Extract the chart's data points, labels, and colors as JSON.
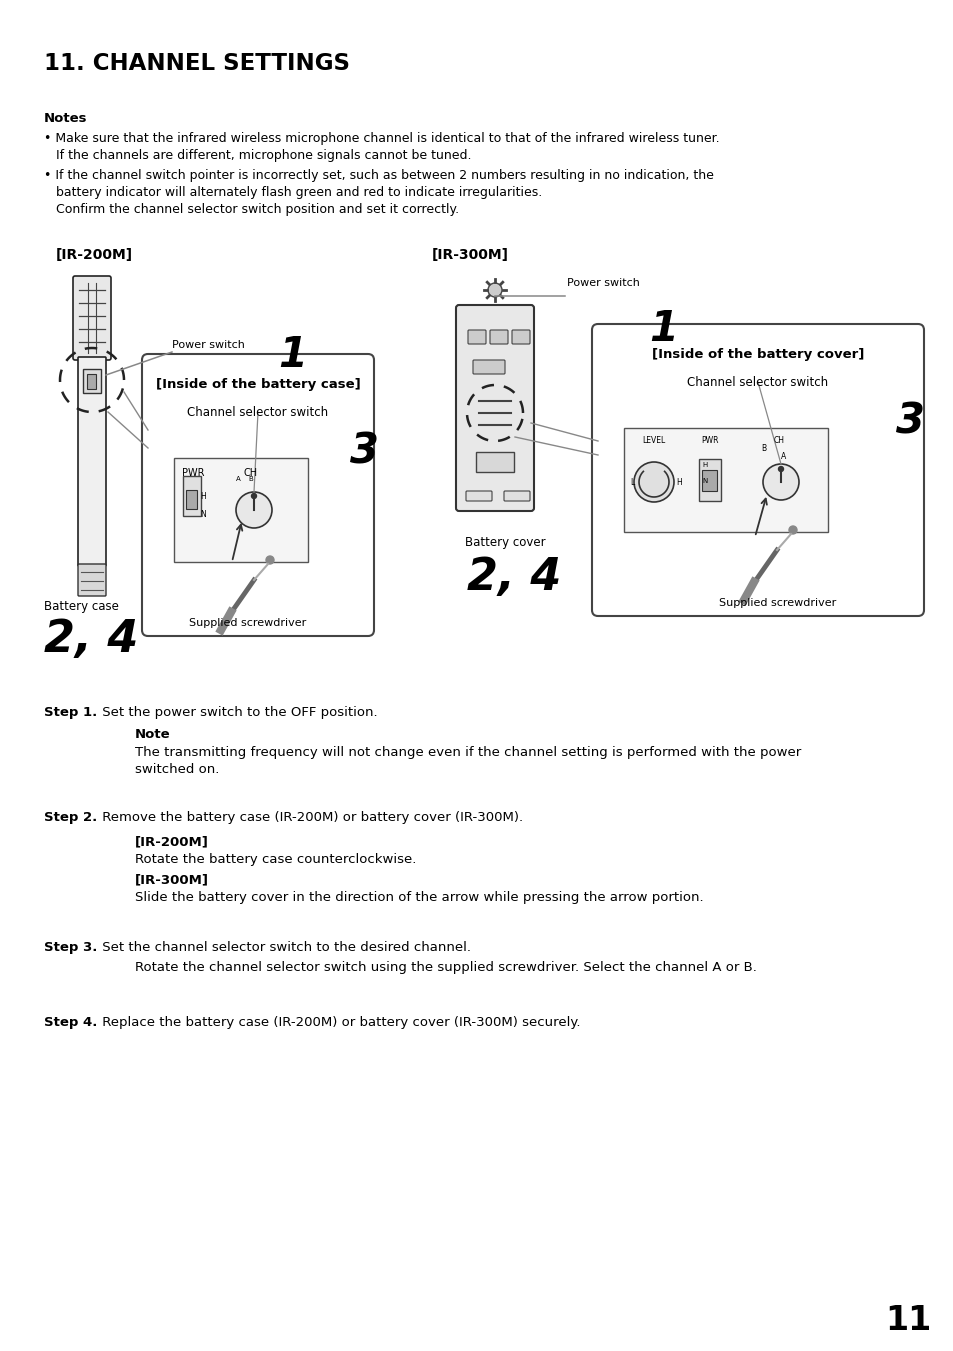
{
  "title": "11. CHANNEL SETTINGS",
  "bg_color": "#ffffff",
  "text_color": "#000000",
  "page_number": "11",
  "notes_header": "Notes",
  "note1_line1": "• Make sure that the infrared wireless microphone channel is identical to that of the infrared wireless tuner.",
  "note1_line2": "   If the channels are different, microphone signals cannot be tuned.",
  "note2_line1": "• If the channel switch pointer is incorrectly set, such as between 2 numbers resulting in no indication, the",
  "note2_line2": "   battery indicator will alternately flash green and red to indicate irregularities.",
  "note2_line3": "   Confirm the channel selector switch position and set it correctly.",
  "label_ir200": "[IR-200M]",
  "label_ir300": "[IR-300M]",
  "label_power_switch": "Power switch",
  "label_battery_case_inside": "[Inside of the battery case]",
  "label_battery_cover_inside": "[Inside of the battery cover]",
  "label_channel_selector": "Channel selector switch",
  "label_supplied_screwdriver": "Supplied screwdriver",
  "label_battery_case": "Battery case",
  "label_battery_cover": "Battery cover",
  "step1_bold": "Step 1.",
  "step1_text": " Set the power switch to the OFF position.",
  "step1_note_bold": "Note",
  "step1_note_line1": "The transmitting frequency will not change even if the channel setting is performed with the power",
  "step1_note_line2": "switched on.",
  "step2_bold": "Step 2.",
  "step2_text": " Remove the battery case (IR-200M) or battery cover (IR-300M).",
  "step2_ir200_bold": "[IR-200M]",
  "step2_ir200_text": "Rotate the battery case counterclockwise.",
  "step2_ir300_bold": "[IR-300M]",
  "step2_ir300_text": "Slide the battery cover in the direction of the arrow while pressing the arrow portion.",
  "step3_bold": "Step 3.",
  "step3_text": " Set the channel selector switch to the desired channel.",
  "step3_text2": "Rotate the channel selector switch using the supplied screwdriver. Select the channel A or B.",
  "step4_bold": "Step 4.",
  "step4_text": " Replace the battery case (IR-200M) or battery cover (IR-300M) securely."
}
